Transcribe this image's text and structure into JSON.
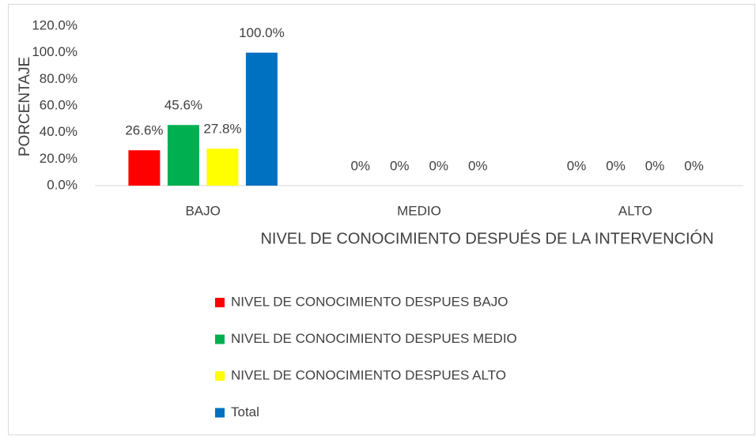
{
  "chart_data": {
    "type": "bar",
    "categories": [
      "BAJO",
      "MEDIO",
      "ALTO"
    ],
    "series": [
      {
        "name": "NIVEL DE CONOCIMIENTO DESPUES BAJO",
        "color": "#ff0000",
        "values": [
          26.6,
          0,
          0
        ],
        "value_labels": [
          "26.6%",
          "0%",
          "0%"
        ]
      },
      {
        "name": "NIVEL DE CONOCIMIENTO DESPUES MEDIO",
        "color": "#00b050",
        "values": [
          45.6,
          0,
          0
        ],
        "value_labels": [
          "45.6%",
          "0%",
          "0%"
        ]
      },
      {
        "name": "NIVEL DE CONOCIMIENTO DESPUES ALTO",
        "color": "#ffff00",
        "values": [
          27.8,
          0,
          0
        ],
        "value_labels": [
          "27.8%",
          "0%",
          "0%"
        ]
      },
      {
        "name": "Total",
        "color": "#0070c0",
        "values": [
          100,
          0,
          0
        ],
        "value_labels": [
          "100.0%",
          "0%",
          "0%"
        ]
      }
    ],
    "xlabel": "NIVEL DE CONOCIMIENTO DESPUÉS DE LA INTERVENCIÓN",
    "ylabel": "PORCENTAJE",
    "ylim": [
      0,
      120
    ],
    "yticks": [
      {
        "value": 0,
        "label": "0.0%"
      },
      {
        "value": 20,
        "label": "20.0%"
      },
      {
        "value": 40,
        "label": "40.0%"
      },
      {
        "value": 60,
        "label": "60.0%"
      },
      {
        "value": 80,
        "label": "80.0%"
      },
      {
        "value": 100,
        "label": "100.0%"
      },
      {
        "value": 120,
        "label": "120.0%"
      }
    ],
    "grid": false,
    "legend": "bottom"
  }
}
